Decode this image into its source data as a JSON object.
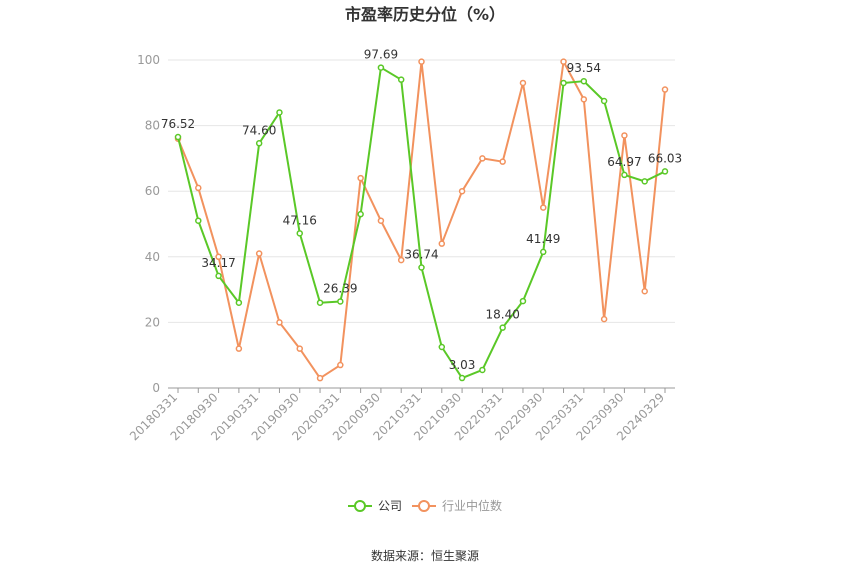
{
  "source_text": "数据来源：恒生聚源",
  "chart_data": {
    "type": "line",
    "title": "市盈率历史分位（%）",
    "xlabel": "",
    "ylabel": "",
    "ylim": [
      0,
      100
    ],
    "yticks": [
      0,
      20,
      40,
      60,
      80,
      100
    ],
    "grid": true,
    "legend_position": "bottom",
    "x": [
      "20180331",
      "20180630",
      "20180930",
      "20181231",
      "20190331",
      "20190630",
      "20190930",
      "20191231",
      "20200331",
      "20200630",
      "20200930",
      "20201231",
      "20210331",
      "20210630",
      "20210930",
      "20211231",
      "20220331",
      "20220630",
      "20220930",
      "20221231",
      "20230331",
      "20230630",
      "20230930",
      "20231231",
      "20240329"
    ],
    "xtick_labels": [
      "20180331",
      "20180930",
      "20190331",
      "20190930",
      "20200331",
      "20200930",
      "20210331",
      "20210930",
      "20220331",
      "20220930",
      "20230331",
      "20230930",
      "20240329"
    ],
    "series": [
      {
        "name": "公司",
        "color": "#5ac827",
        "values": [
          76.52,
          51,
          34.17,
          26,
          74.6,
          84,
          47.16,
          26,
          26.39,
          53,
          97.69,
          94,
          36.74,
          12.5,
          3.03,
          5.5,
          18.4,
          26.5,
          41.49,
          93,
          93.54,
          87.5,
          64.97,
          63,
          66.03
        ],
        "labels": [
          "76.52",
          "",
          "34.17",
          "",
          "74.60",
          "",
          "47.16",
          "",
          "26.39",
          "",
          "97.69",
          "",
          "36.74",
          "",
          "3.03",
          "",
          "18.40",
          "",
          "41.49",
          "",
          "93.54",
          "",
          "64.97",
          "",
          "66.03"
        ]
      },
      {
        "name": "行业中位数",
        "color": "#f2925e",
        "values": [
          76,
          61,
          40,
          12,
          41,
          20,
          12,
          3,
          7,
          64,
          51,
          39,
          99.5,
          44,
          60,
          70,
          69,
          93,
          55,
          99.5,
          88,
          21,
          77,
          29.5,
          91
        ]
      }
    ]
  }
}
